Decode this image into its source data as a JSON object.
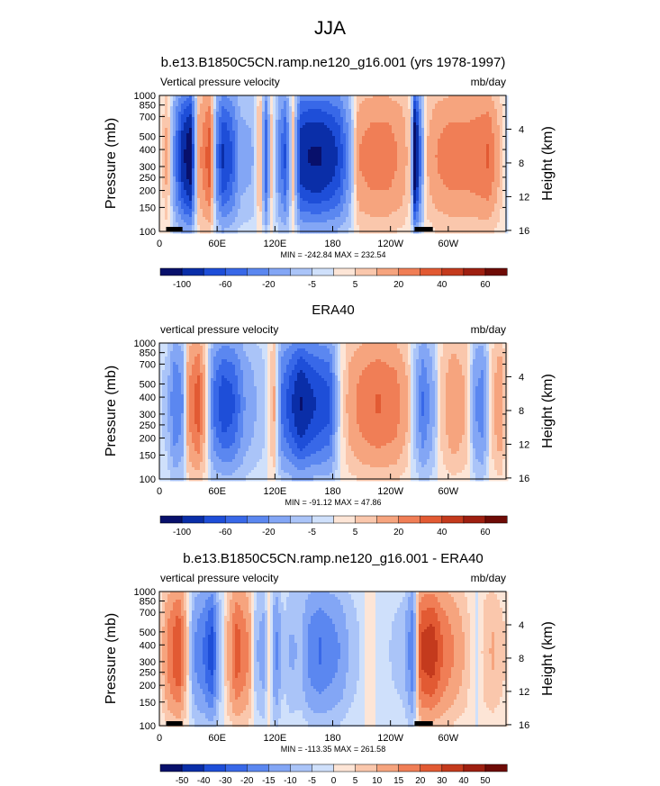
{
  "page_title": "JJA",
  "chart_data": [
    {
      "type": "heatmap",
      "title": "b.e13.B1850C5CN.ramp.ne120_g16.001 (yrs 1978-1997)",
      "left_label": "Vertical pressure velocity",
      "right_label": "mb/day",
      "ylabel": "Pressure (mb)",
      "ylabel_right": "Height (km)",
      "x_ticks": [
        "0",
        "60E",
        "120E",
        "180",
        "120W",
        "60W"
      ],
      "x_tick_values": [
        0,
        60,
        120,
        180,
        240,
        300
      ],
      "xlim": [
        0,
        360
      ],
      "y_ticks": [
        "100",
        "150",
        "200",
        "250",
        "300",
        "400",
        "500",
        "700",
        "850",
        "1000"
      ],
      "y_tick_values": [
        100,
        150,
        200,
        250,
        300,
        400,
        500,
        700,
        850,
        1000
      ],
      "ylim": [
        1000,
        100
      ],
      "height_ticks": [
        "4",
        "8",
        "12",
        "16"
      ],
      "height_tick_values": [
        4,
        8,
        12,
        16
      ],
      "stats": "MIN = -242.84  MAX = 232.54",
      "colorbar_labels": [
        "-100",
        "-60",
        "-20",
        "-5",
        "5",
        "20",
        "40",
        "60"
      ],
      "colorbar_colors": [
        "#08106b",
        "#0a2ea8",
        "#1e4ed8",
        "#3868e8",
        "#5b87f0",
        "#83a6f5",
        "#aac4f8",
        "#cfe0fb",
        "#fde5d6",
        "#fac7ac",
        "#f6a47e",
        "#f07e56",
        "#e25a33",
        "#c43a1d",
        "#9e1f10",
        "#6e0b06"
      ],
      "profile": [
        [
          0,
          -3
        ],
        [
          8,
          15
        ],
        [
          16,
          -25
        ],
        [
          24,
          -55
        ],
        [
          32,
          -70
        ],
        [
          40,
          15
        ],
        [
          52,
          35
        ],
        [
          60,
          -30
        ],
        [
          66,
          -50
        ],
        [
          74,
          -40
        ],
        [
          84,
          -15
        ],
        [
          96,
          -12
        ],
        [
          104,
          15
        ],
        [
          110,
          -40
        ],
        [
          116,
          8
        ],
        [
          124,
          -25
        ],
        [
          130,
          -40
        ],
        [
          138,
          8
        ],
        [
          146,
          -55
        ],
        [
          156,
          -60
        ],
        [
          166,
          -60
        ],
        [
          176,
          -55
        ],
        [
          186,
          -45
        ],
        [
          196,
          -20
        ],
        [
          206,
          20
        ],
        [
          220,
          25
        ],
        [
          236,
          25
        ],
        [
          250,
          18
        ],
        [
          260,
          5
        ],
        [
          264,
          -80
        ],
        [
          270,
          -25
        ],
        [
          276,
          10
        ],
        [
          286,
          20
        ],
        [
          300,
          25
        ],
        [
          320,
          25
        ],
        [
          340,
          30
        ],
        [
          360,
          -3
        ]
      ]
    },
    {
      "type": "heatmap",
      "title": "ERA40",
      "left_label": "vertical pressure velocity",
      "right_label": "mb/day",
      "ylabel": "Pressure (mb)",
      "ylabel_right": "Height (km)",
      "x_ticks": [
        "0",
        "60E",
        "120E",
        "180",
        "120W",
        "60W"
      ],
      "x_tick_values": [
        0,
        60,
        120,
        180,
        240,
        300
      ],
      "xlim": [
        0,
        360
      ],
      "y_ticks": [
        "100",
        "150",
        "200",
        "250",
        "300",
        "400",
        "500",
        "700",
        "850",
        "1000"
      ],
      "y_tick_values": [
        100,
        150,
        200,
        250,
        300,
        400,
        500,
        700,
        850,
        1000
      ],
      "ylim": [
        1000,
        100
      ],
      "height_ticks": [
        "4",
        "8",
        "12",
        "16"
      ],
      "height_tick_values": [
        4,
        8,
        12,
        16
      ],
      "stats": "MIN = -91.12  MAX = 47.86",
      "colorbar_labels": [
        "-100",
        "-60",
        "-20",
        "-5",
        "5",
        "20",
        "40",
        "60"
      ],
      "colorbar_colors": [
        "#08106b",
        "#0a2ea8",
        "#1e4ed8",
        "#3868e8",
        "#5b87f0",
        "#83a6f5",
        "#aac4f8",
        "#cfe0fb",
        "#fde5d6",
        "#fac7ac",
        "#f6a47e",
        "#f07e56",
        "#e25a33",
        "#c43a1d",
        "#9e1f10",
        "#6e0b06"
      ],
      "profile": [
        [
          0,
          -3
        ],
        [
          8,
          -8
        ],
        [
          16,
          -30
        ],
        [
          24,
          -20
        ],
        [
          30,
          20
        ],
        [
          40,
          35
        ],
        [
          48,
          8
        ],
        [
          56,
          -30
        ],
        [
          66,
          -45
        ],
        [
          76,
          -40
        ],
        [
          88,
          -20
        ],
        [
          98,
          -12
        ],
        [
          106,
          -8
        ],
        [
          112,
          -3
        ],
        [
          118,
          15
        ],
        [
          126,
          -30
        ],
        [
          136,
          -45
        ],
        [
          146,
          -60
        ],
        [
          156,
          -50
        ],
        [
          166,
          -45
        ],
        [
          176,
          -40
        ],
        [
          184,
          -8
        ],
        [
          196,
          15
        ],
        [
          210,
          25
        ],
        [
          226,
          30
        ],
        [
          244,
          25
        ],
        [
          256,
          12
        ],
        [
          266,
          -15
        ],
        [
          272,
          -30
        ],
        [
          282,
          -15
        ],
        [
          292,
          8
        ],
        [
          304,
          20
        ],
        [
          318,
          10
        ],
        [
          326,
          -20
        ],
        [
          334,
          -25
        ],
        [
          344,
          8
        ],
        [
          352,
          20
        ],
        [
          360,
          -3
        ]
      ]
    },
    {
      "type": "heatmap",
      "title": "b.e13.B1850C5CN.ramp.ne120_g16.001 - ERA40",
      "left_label": "vertical pressure velocity",
      "right_label": "mb/day",
      "ylabel": "Pressure (mb)",
      "ylabel_right": "Height (km)",
      "x_ticks": [
        "0",
        "60E",
        "120E",
        "180",
        "120W",
        "60W"
      ],
      "x_tick_values": [
        0,
        60,
        120,
        180,
        240,
        300
      ],
      "xlim": [
        0,
        360
      ],
      "y_ticks": [
        "100",
        "150",
        "200",
        "250",
        "300",
        "400",
        "500",
        "700",
        "850",
        "1000"
      ],
      "y_tick_values": [
        100,
        150,
        200,
        250,
        300,
        400,
        500,
        700,
        850,
        1000
      ],
      "ylim": [
        1000,
        100
      ],
      "height_ticks": [
        "4",
        "8",
        "12",
        "16"
      ],
      "height_tick_values": [
        4,
        8,
        12,
        16
      ],
      "stats": "MIN = -113.35  MAX = 261.58",
      "colorbar_labels": [
        "-50",
        "-40",
        "-30",
        "-20",
        "-15",
        "-10",
        "-5",
        "0",
        "5",
        "10",
        "15",
        "20",
        "30",
        "40",
        "50"
      ],
      "colorbar_colors": [
        "#08106b",
        "#0a2ea8",
        "#1e4ed8",
        "#3868e8",
        "#5b87f0",
        "#83a6f5",
        "#aac4f8",
        "#cfe0fb",
        "#fde5d6",
        "#fac7ac",
        "#f6a47e",
        "#f07e56",
        "#e25a33",
        "#c43a1d",
        "#9e1f10",
        "#6e0b06"
      ],
      "profile": [
        [
          0,
          3
        ],
        [
          10,
          25
        ],
        [
          20,
          40
        ],
        [
          28,
          10
        ],
        [
          36,
          -20
        ],
        [
          46,
          -30
        ],
        [
          54,
          -45
        ],
        [
          62,
          -10
        ],
        [
          72,
          15
        ],
        [
          80,
          35
        ],
        [
          92,
          20
        ],
        [
          100,
          -10
        ],
        [
          108,
          -15
        ],
        [
          114,
          8
        ],
        [
          120,
          -25
        ],
        [
          128,
          -5
        ],
        [
          136,
          -12
        ],
        [
          146,
          -10
        ],
        [
          156,
          -25
        ],
        [
          166,
          -30
        ],
        [
          176,
          -25
        ],
        [
          186,
          -20
        ],
        [
          196,
          -10
        ],
        [
          206,
          -5
        ],
        [
          216,
          3
        ],
        [
          228,
          -2
        ],
        [
          240,
          -5
        ],
        [
          252,
          -8
        ],
        [
          262,
          -30
        ],
        [
          270,
          40
        ],
        [
          282,
          45
        ],
        [
          292,
          30
        ],
        [
          304,
          20
        ],
        [
          316,
          10
        ],
        [
          328,
          -3
        ],
        [
          336,
          8
        ],
        [
          344,
          12
        ],
        [
          360,
          3
        ]
      ]
    }
  ]
}
